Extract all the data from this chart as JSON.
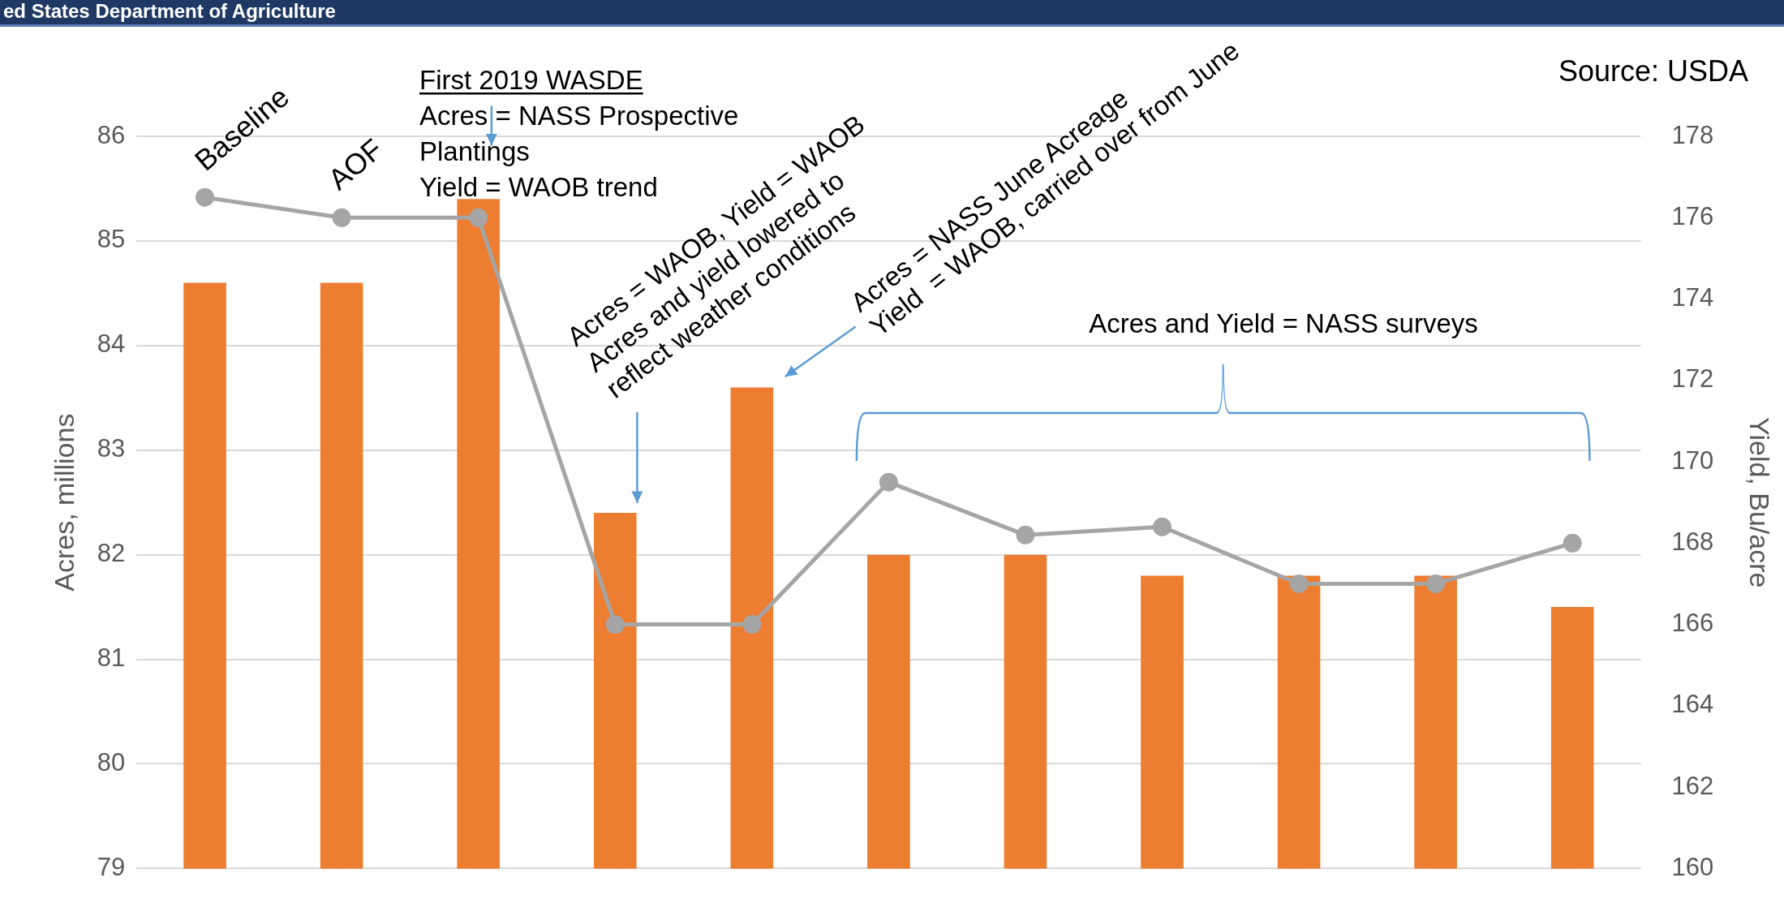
{
  "chart_data": {
    "type": "bar",
    "categories": [
      null,
      null,
      null,
      null,
      null,
      null,
      null,
      null,
      null,
      null,
      null
    ],
    "series": [
      {
        "color": "#ed7d31",
        "values": [
          84.6,
          84.6,
          85.4,
          82.4,
          83.6,
          82.0,
          82.0,
          81.8,
          81.8,
          81.8,
          81.5
        ]
      },
      {
        "type": "line",
        "axis": "y2",
        "color": "#a5a5a5",
        "marker": "circle",
        "values": [
          176.5,
          176.0,
          176.0,
          166.0,
          166.0,
          169.5,
          168.2,
          168.4,
          167.0,
          167.0,
          168.0
        ]
      }
    ],
    "ylabel": "Acres, millions",
    "y2label": "Yield, Bu/acre",
    "ylim": [
      79,
      86
    ],
    "yticks": [
      79,
      80,
      81,
      82,
      83,
      84,
      85,
      86
    ],
    "y2lim": [
      160,
      178
    ],
    "y2ticks": [
      160,
      162,
      164,
      166,
      168,
      170,
      172,
      174,
      176,
      178
    ],
    "grid": "y",
    "legend": false,
    "tick_labels": "y",
    "annotations": [
      "ed States Department of Agriculture",
      "Source: USDA",
      "Baseline",
      "AOF",
      "First 2019 WASDE",
      "Acres = NASS Prospective\nPlantings\nYield = WAOB trend",
      "Acres = WAOB, Yield = WAOB\nAcres and yield lowered to\nreflect weather conditions",
      "Acres = NASS June Acreage\nYield  = WAOB, carried over from June",
      "Acres and Yield = NASS surveys"
    ]
  }
}
